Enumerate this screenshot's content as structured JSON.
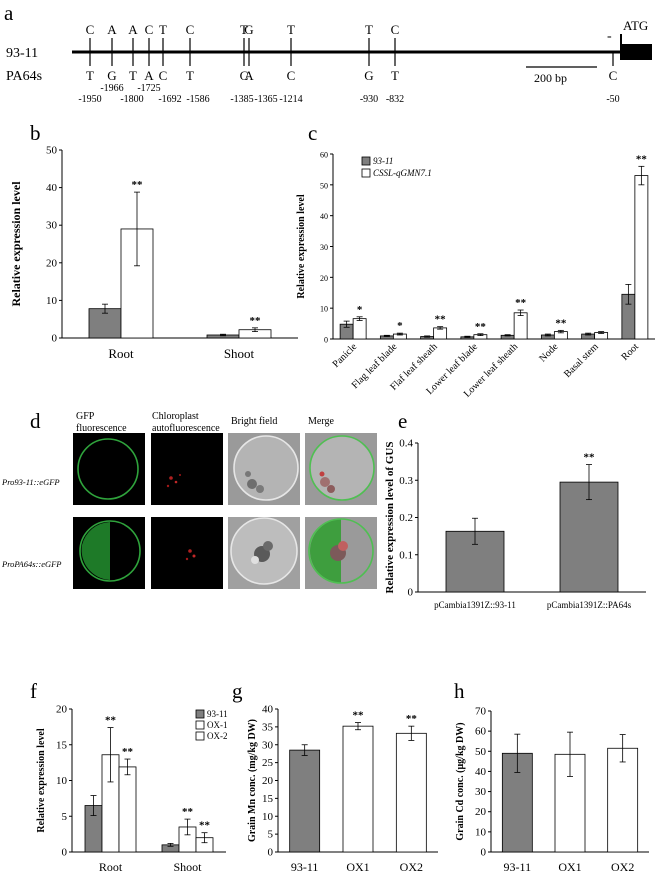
{
  "panels": {
    "a": {
      "letter": "a",
      "line1_label": "93-11",
      "line2_label": "PA64s",
      "atg": "ATG",
      "scale_label": "200 bp",
      "dash": "-",
      "snps": [
        {
          "top": "C",
          "bottom": "T",
          "pos": "-1950"
        },
        {
          "top": "A",
          "bottom": "G",
          "pos": "-1966"
        },
        {
          "top": "A",
          "bottom": "T",
          "pos": "-1800"
        },
        {
          "top": "C",
          "bottom": "A",
          "pos": "-1725"
        },
        {
          "top": "T",
          "bottom": "C",
          "pos": "-1692"
        },
        {
          "top": "C",
          "bottom": "T",
          "pos": "-1586"
        },
        {
          "top": "T",
          "bottom": "C",
          "pos": "-1385"
        },
        {
          "top": "G",
          "bottom": "A",
          "pos": "-1365"
        },
        {
          "top": "T",
          "bottom": "C",
          "pos": "-1214"
        },
        {
          "top": "T",
          "bottom": "G",
          "pos": "-930"
        },
        {
          "top": "C",
          "bottom": "T",
          "pos": "-832"
        },
        {
          "top": "",
          "bottom": "C",
          "pos": "-50"
        }
      ]
    },
    "d": {
      "letter": "d",
      "col_headers": [
        "GFP\nfluorescence",
        "Chloroplast\nautofluorescence",
        "Bright field",
        "Merge"
      ],
      "row_labels": [
        "Pro93-11::eGFP",
        "ProPA64s::eGFP"
      ]
    }
  },
  "chart_data": [
    {
      "panel": "b",
      "type": "bar",
      "categories": [
        "Root",
        "Shoot"
      ],
      "series": [
        {
          "values": [
            7.8,
            0.8
          ],
          "errors": [
            1.2,
            0.2
          ],
          "color": "#7f7f7f"
        },
        {
          "values": [
            29,
            2.2
          ],
          "errors": [
            9.8,
            0.5
          ],
          "color": "#ffffff",
          "sig": [
            "**",
            "**"
          ]
        }
      ],
      "ylabel": "Relative expression level",
      "ylim": [
        0,
        50
      ],
      "yticks": [
        "0",
        "10",
        "20",
        "30",
        "40",
        "50"
      ]
    },
    {
      "panel": "c",
      "type": "bar",
      "categories": [
        "Panicle",
        "Flag leaf blade",
        "Flaf leaf sheath",
        "Lower leaf blade",
        "Lower leaf sheath",
        "Node",
        "Basal stem",
        "Root"
      ],
      "series": [
        {
          "name": "93-11",
          "values": [
            4.8,
            1.0,
            0.8,
            0.7,
            1.2,
            1.3,
            1.6,
            14.5
          ],
          "errors": [
            1.0,
            0.2,
            0.2,
            0.2,
            0.2,
            0.3,
            0.3,
            3.2
          ],
          "color": "#7f7f7f"
        },
        {
          "name": "CSSL-qGMN7.1",
          "values": [
            6.6,
            1.6,
            3.6,
            1.4,
            8.5,
            2.4,
            2.1,
            53
          ],
          "errors": [
            0.6,
            0.3,
            0.4,
            0.3,
            0.9,
            0.4,
            0.3,
            3.0
          ],
          "color": "#ffffff",
          "sig": [
            "*",
            "*",
            "**",
            "**",
            "**",
            "**",
            "",
            "**"
          ]
        }
      ],
      "ylabel": "Relative expression level",
      "ylim": [
        0,
        60
      ],
      "yticks": [
        "0",
        "10",
        "20",
        "30",
        "40",
        "50",
        "60"
      ]
    },
    {
      "panel": "e",
      "type": "bar",
      "categories": [
        "pCambia1391Z::93-11",
        "pCambia1391Z::PA64s"
      ],
      "series": [
        {
          "values": [
            0.163,
            0.295
          ],
          "errors": [
            0.035,
            0.047
          ],
          "color": "#7f7f7f",
          "sig": [
            "",
            "**"
          ]
        }
      ],
      "ylabel": "Relative expression level of GUS",
      "ylim": [
        0,
        0.4
      ],
      "yticks": [
        "0",
        "0.1",
        "0.2",
        "0.3",
        "0.4"
      ]
    },
    {
      "panel": "f",
      "type": "bar",
      "categories": [
        "Root",
        "Shoot"
      ],
      "series": [
        {
          "name": "93-11",
          "values": [
            6.5,
            1.0
          ],
          "errors": [
            1.4,
            0.2
          ],
          "color": "#7f7f7f"
        },
        {
          "name": "OX-1",
          "values": [
            13.6,
            3.5
          ],
          "errors": [
            3.8,
            1.1
          ],
          "color": "#ffffff",
          "sig": [
            "**",
            "**"
          ]
        },
        {
          "name": "OX-2",
          "values": [
            11.9,
            2.0
          ],
          "errors": [
            1.1,
            0.7
          ],
          "color": "#ffffff",
          "sig": [
            "**",
            "**"
          ]
        }
      ],
      "ylabel": "Relative expression level",
      "ylim": [
        0,
        20
      ],
      "yticks": [
        "0",
        "5",
        "10",
        "15",
        "20"
      ]
    },
    {
      "panel": "g",
      "type": "bar",
      "categories": [
        "93-11",
        "OX1",
        "OX2"
      ],
      "series": [
        {
          "values": [
            28.5,
            35.2,
            33.2
          ],
          "errors": [
            1.5,
            1.0,
            2.0
          ],
          "colors": [
            "#7f7f7f",
            "#ffffff",
            "#ffffff"
          ],
          "sig": [
            "",
            "**",
            "**"
          ]
        }
      ],
      "ylabel": "Grain Mn conc. (mg/kg DW)",
      "ylim": [
        0,
        40
      ],
      "yticks": [
        "0",
        "5",
        "10",
        "15",
        "20",
        "25",
        "30",
        "35",
        "40"
      ]
    },
    {
      "panel": "h",
      "type": "bar",
      "categories": [
        "93-11",
        "OX1",
        "OX2"
      ],
      "series": [
        {
          "values": [
            49,
            48.5,
            51.5
          ],
          "errors": [
            9.5,
            11.0,
            6.8
          ],
          "colors": [
            "#7f7f7f",
            "#ffffff",
            "#ffffff"
          ]
        }
      ],
      "ylabel": "Grain Cd conc. (μg/kg DW)",
      "ylim": [
        0,
        70
      ],
      "yticks": [
        "0",
        "10",
        "20",
        "30",
        "40",
        "50",
        "60",
        "70"
      ]
    }
  ]
}
